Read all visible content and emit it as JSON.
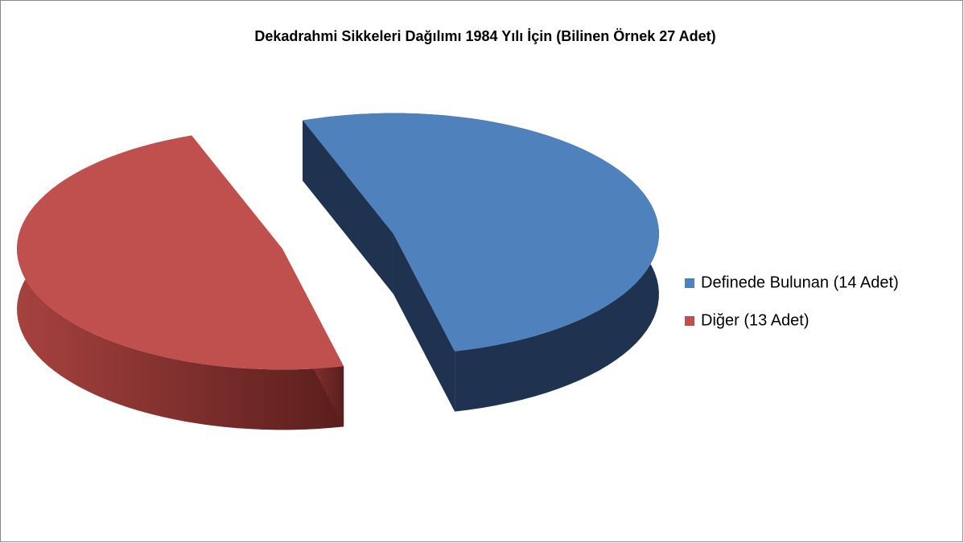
{
  "chart_data": {
    "type": "pie",
    "title": "Dekadrahmi Sikkeleri Dağılımı 1984 Yılı İçin (Bilinen Örnek 27 Adet)",
    "categories": [
      "Definede Bulunan (14 Adet)",
      "Diğer (13 Adet)"
    ],
    "values": [
      14,
      13
    ],
    "colors": [
      "#4f81bd",
      "#c0504d"
    ],
    "legend": "right"
  }
}
